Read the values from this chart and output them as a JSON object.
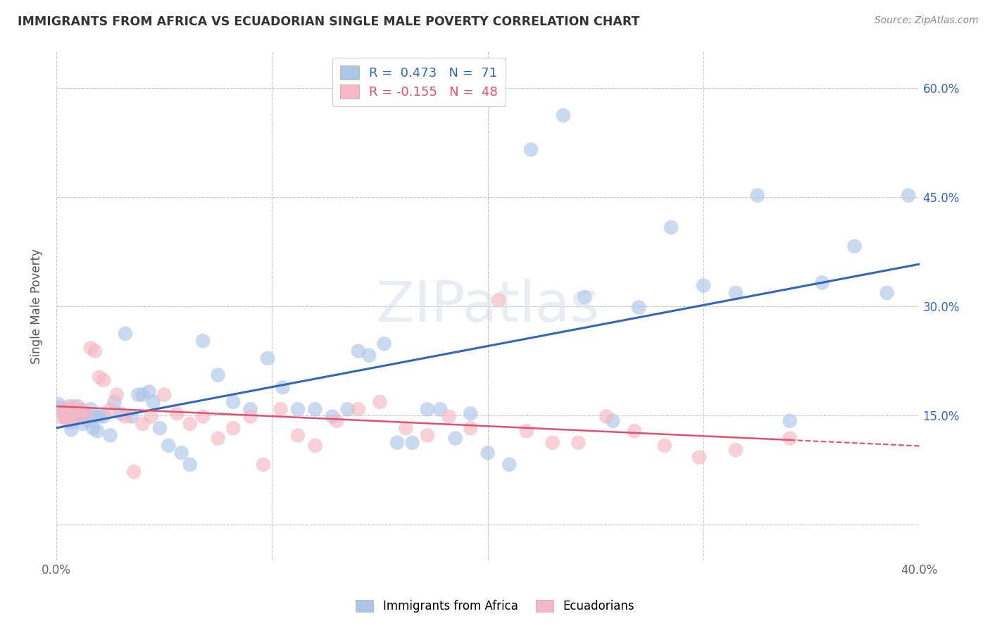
{
  "title": "IMMIGRANTS FROM AFRICA VS ECUADORIAN SINGLE MALE POVERTY CORRELATION CHART",
  "source": "Source: ZipAtlas.com",
  "ylabel": "Single Male Poverty",
  "background_color": "#ffffff",
  "grid_color": "#c8c8c8",
  "watermark": "ZIPatlas",
  "blue_r": 0.473,
  "blue_n": 71,
  "pink_r": -0.155,
  "pink_n": 48,
  "blue_color": "#adc6e8",
  "blue_line_color": "#3366bb",
  "pink_color": "#f5b8c4",
  "pink_line_color": "#e05070",
  "xlim": [
    0.0,
    0.4
  ],
  "ylim": [
    -0.05,
    0.65
  ],
  "yticks": [
    0.0,
    0.15,
    0.3,
    0.45,
    0.6
  ],
  "ytick_labels_right": [
    "",
    "15.0%",
    "30.0%",
    "45.0%",
    "60.0%"
  ],
  "xticks": [
    0.0,
    0.1,
    0.2,
    0.3,
    0.4
  ],
  "xtick_labels": [
    "0.0%",
    "",
    "",
    "",
    "40.0%"
  ],
  "blue_x": [
    0.001,
    0.002,
    0.003,
    0.004,
    0.004,
    0.005,
    0.006,
    0.007,
    0.007,
    0.008,
    0.009,
    0.01,
    0.011,
    0.012,
    0.013,
    0.014,
    0.015,
    0.016,
    0.017,
    0.018,
    0.019,
    0.02,
    0.022,
    0.025,
    0.027,
    0.03,
    0.032,
    0.035,
    0.038,
    0.04,
    0.043,
    0.045,
    0.048,
    0.052,
    0.058,
    0.062,
    0.068,
    0.075,
    0.082,
    0.09,
    0.098,
    0.105,
    0.112,
    0.12,
    0.128,
    0.135,
    0.14,
    0.145,
    0.152,
    0.158,
    0.165,
    0.172,
    0.178,
    0.185,
    0.192,
    0.2,
    0.21,
    0.22,
    0.235,
    0.245,
    0.258,
    0.27,
    0.285,
    0.3,
    0.315,
    0.325,
    0.34,
    0.355,
    0.37,
    0.385,
    0.395
  ],
  "blue_y": [
    0.165,
    0.16,
    0.155,
    0.148,
    0.152,
    0.15,
    0.162,
    0.14,
    0.13,
    0.155,
    0.145,
    0.162,
    0.155,
    0.138,
    0.15,
    0.148,
    0.142,
    0.158,
    0.132,
    0.148,
    0.128,
    0.148,
    0.148,
    0.122,
    0.168,
    0.152,
    0.262,
    0.148,
    0.178,
    0.178,
    0.182,
    0.168,
    0.132,
    0.108,
    0.098,
    0.082,
    0.252,
    0.205,
    0.168,
    0.158,
    0.228,
    0.188,
    0.158,
    0.158,
    0.148,
    0.158,
    0.238,
    0.232,
    0.248,
    0.112,
    0.112,
    0.158,
    0.158,
    0.118,
    0.152,
    0.098,
    0.082,
    0.515,
    0.562,
    0.312,
    0.142,
    0.298,
    0.408,
    0.328,
    0.318,
    0.452,
    0.142,
    0.332,
    0.382,
    0.318,
    0.452
  ],
  "pink_x": [
    0.002,
    0.003,
    0.004,
    0.005,
    0.006,
    0.007,
    0.008,
    0.01,
    0.012,
    0.014,
    0.016,
    0.018,
    0.02,
    0.022,
    0.025,
    0.028,
    0.032,
    0.036,
    0.04,
    0.044,
    0.05,
    0.056,
    0.062,
    0.068,
    0.075,
    0.082,
    0.09,
    0.096,
    0.104,
    0.112,
    0.12,
    0.13,
    0.14,
    0.15,
    0.162,
    0.172,
    0.182,
    0.192,
    0.205,
    0.218,
    0.23,
    0.242,
    0.255,
    0.268,
    0.282,
    0.298,
    0.315,
    0.34
  ],
  "pink_y": [
    0.148,
    0.158,
    0.152,
    0.142,
    0.158,
    0.148,
    0.162,
    0.148,
    0.158,
    0.152,
    0.242,
    0.238,
    0.202,
    0.198,
    0.158,
    0.178,
    0.148,
    0.072,
    0.138,
    0.148,
    0.178,
    0.152,
    0.138,
    0.148,
    0.118,
    0.132,
    0.148,
    0.082,
    0.158,
    0.122,
    0.108,
    0.142,
    0.158,
    0.168,
    0.132,
    0.122,
    0.148,
    0.132,
    0.308,
    0.128,
    0.112,
    0.112,
    0.148,
    0.128,
    0.108,
    0.092,
    0.102,
    0.118
  ]
}
